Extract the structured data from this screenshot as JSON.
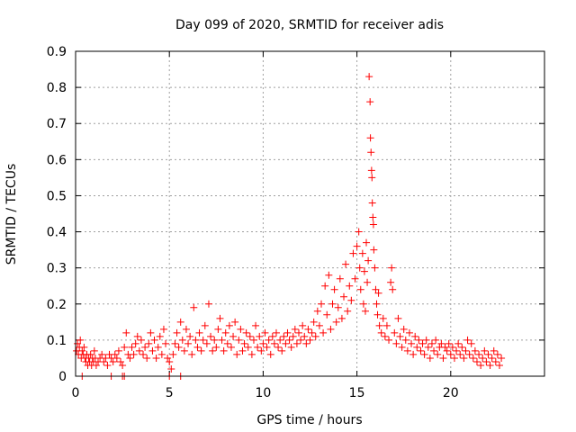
{
  "chart_data": {
    "type": "scatter",
    "title": "Day 099 of 2020, SRMTID for receiver adis",
    "xlabel": "GPS time / hours",
    "ylabel": "SRMTID / TECUs",
    "xlim": [
      0,
      25
    ],
    "ylim": [
      0,
      0.9
    ],
    "xticks": [
      0,
      5,
      10,
      15,
      20
    ],
    "yticks": [
      0,
      0.1,
      0.2,
      0.3,
      0.4,
      0.5,
      0.6,
      0.7,
      0.8,
      0.9
    ],
    "xtick_labels": [
      "0",
      "5",
      "10",
      "15",
      "20"
    ],
    "ytick_labels": [
      "0",
      "0.1",
      "0.2",
      "0.3",
      "0.4",
      "0.5",
      "0.6",
      "0.7",
      "0.8",
      "0.9"
    ],
    "grid": true,
    "marker": "plus",
    "color": "#ff0000",
    "series": [
      {
        "name": "SRMTID",
        "points": [
          [
            0.05,
            0.07
          ],
          [
            0.1,
            0.09
          ],
          [
            0.15,
            0.06
          ],
          [
            0.2,
            0.08
          ],
          [
            0.25,
            0.1
          ],
          [
            0.3,
            0.05
          ],
          [
            0.35,
            0.07
          ],
          [
            0.4,
            0.06
          ],
          [
            0.45,
            0.08
          ],
          [
            0.5,
            0.05
          ],
          [
            0.55,
            0.04
          ],
          [
            0.6,
            0.06
          ],
          [
            0.65,
            0.03
          ],
          [
            0.7,
            0.05
          ],
          [
            0.75,
            0.04
          ],
          [
            0.8,
            0.06
          ],
          [
            0.85,
            0.03
          ],
          [
            0.9,
            0.05
          ],
          [
            0.95,
            0.04
          ],
          [
            1.0,
            0.07
          ],
          [
            1.05,
            0.05
          ],
          [
            1.1,
            0.03
          ],
          [
            1.2,
            0.04
          ],
          [
            1.3,
            0.05
          ],
          [
            1.4,
            0.06
          ],
          [
            1.5,
            0.04
          ],
          [
            1.6,
            0.05
          ],
          [
            1.7,
            0.03
          ],
          [
            1.8,
            0.06
          ],
          [
            1.9,
            0.05
          ],
          [
            2.0,
            0.04
          ],
          [
            2.1,
            0.06
          ],
          [
            2.2,
            0.05
          ],
          [
            2.3,
            0.07
          ],
          [
            2.4,
            0.04
          ],
          [
            2.5,
            0.03
          ],
          [
            2.6,
            0.08
          ],
          [
            2.7,
            0.12
          ],
          [
            2.8,
            0.06
          ],
          [
            2.9,
            0.05
          ],
          [
            3.0,
            0.08
          ],
          [
            3.1,
            0.06
          ],
          [
            3.2,
            0.09
          ],
          [
            3.3,
            0.11
          ],
          [
            3.4,
            0.07
          ],
          [
            3.5,
            0.1
          ],
          [
            3.6,
            0.06
          ],
          [
            3.7,
            0.08
          ],
          [
            3.8,
            0.05
          ],
          [
            3.9,
            0.09
          ],
          [
            4.0,
            0.12
          ],
          [
            4.1,
            0.07
          ],
          [
            4.2,
            0.1
          ],
          [
            4.3,
            0.05
          ],
          [
            4.4,
            0.08
          ],
          [
            4.5,
            0.11
          ],
          [
            4.6,
            0.06
          ],
          [
            4.7,
            0.13
          ],
          [
            4.8,
            0.09
          ],
          [
            4.9,
            0.05
          ],
          [
            5.0,
            0.04
          ],
          [
            5.1,
            0.02
          ],
          [
            5.2,
            0.06
          ],
          [
            5.3,
            0.09
          ],
          [
            5.4,
            0.12
          ],
          [
            5.5,
            0.08
          ],
          [
            5.6,
            0.15
          ],
          [
            5.7,
            0.1
          ],
          [
            5.8,
            0.07
          ],
          [
            5.9,
            0.13
          ],
          [
            6.0,
            0.09
          ],
          [
            6.1,
            0.11
          ],
          [
            6.2,
            0.06
          ],
          [
            6.3,
            0.19
          ],
          [
            6.4,
            0.1
          ],
          [
            6.5,
            0.08
          ],
          [
            6.6,
            0.12
          ],
          [
            6.7,
            0.07
          ],
          [
            6.8,
            0.1
          ],
          [
            6.9,
            0.14
          ],
          [
            7.0,
            0.09
          ],
          [
            7.1,
            0.2
          ],
          [
            7.2,
            0.11
          ],
          [
            7.3,
            0.07
          ],
          [
            7.4,
            0.1
          ],
          [
            7.5,
            0.08
          ],
          [
            7.6,
            0.13
          ],
          [
            7.7,
            0.16
          ],
          [
            7.8,
            0.1
          ],
          [
            7.9,
            0.07
          ],
          [
            8.0,
            0.12
          ],
          [
            8.1,
            0.09
          ],
          [
            8.2,
            0.14
          ],
          [
            8.3,
            0.08
          ],
          [
            8.4,
            0.11
          ],
          [
            8.5,
            0.15
          ],
          [
            8.6,
            0.06
          ],
          [
            8.7,
            0.1
          ],
          [
            8.8,
            0.13
          ],
          [
            8.9,
            0.07
          ],
          [
            9.0,
            0.09
          ],
          [
            9.1,
            0.12
          ],
          [
            9.2,
            0.08
          ],
          [
            9.3,
            0.11
          ],
          [
            9.4,
            0.06
          ],
          [
            9.5,
            0.1
          ],
          [
            9.6,
            0.14
          ],
          [
            9.7,
            0.08
          ],
          [
            9.8,
            0.11
          ],
          [
            9.9,
            0.07
          ],
          [
            10.0,
            0.09
          ],
          [
            10.1,
            0.12
          ],
          [
            10.2,
            0.08
          ],
          [
            10.3,
            0.1
          ],
          [
            10.4,
            0.06
          ],
          [
            10.5,
            0.11
          ],
          [
            10.6,
            0.09
          ],
          [
            10.7,
            0.12
          ],
          [
            10.8,
            0.08
          ],
          [
            10.9,
            0.1
          ],
          [
            11.0,
            0.07
          ],
          [
            11.1,
            0.11
          ],
          [
            11.2,
            0.09
          ],
          [
            11.3,
            0.12
          ],
          [
            11.4,
            0.1
          ],
          [
            11.5,
            0.08
          ],
          [
            11.6,
            0.11
          ],
          [
            11.7,
            0.13
          ],
          [
            11.8,
            0.09
          ],
          [
            11.9,
            0.12
          ],
          [
            12.0,
            0.1
          ],
          [
            12.1,
            0.14
          ],
          [
            12.2,
            0.11
          ],
          [
            12.3,
            0.09
          ],
          [
            12.4,
            0.13
          ],
          [
            12.5,
            0.1
          ],
          [
            12.6,
            0.12
          ],
          [
            12.7,
            0.15
          ],
          [
            12.8,
            0.11
          ],
          [
            12.9,
            0.18
          ],
          [
            13.0,
            0.14
          ],
          [
            13.1,
            0.2
          ],
          [
            13.2,
            0.12
          ],
          [
            13.3,
            0.25
          ],
          [
            13.4,
            0.17
          ],
          [
            13.5,
            0.28
          ],
          [
            13.6,
            0.13
          ],
          [
            13.7,
            0.2
          ],
          [
            13.8,
            0.24
          ],
          [
            13.9,
            0.15
          ],
          [
            14.0,
            0.19
          ],
          [
            14.1,
            0.27
          ],
          [
            14.2,
            0.16
          ],
          [
            14.3,
            0.22
          ],
          [
            14.4,
            0.31
          ],
          [
            14.5,
            0.18
          ],
          [
            14.6,
            0.25
          ],
          [
            14.7,
            0.21
          ],
          [
            14.8,
            0.34
          ],
          [
            14.9,
            0.27
          ],
          [
            15.0,
            0.36
          ],
          [
            15.1,
            0.4
          ],
          [
            15.15,
            0.3
          ],
          [
            15.2,
            0.24
          ],
          [
            15.3,
            0.34
          ],
          [
            15.35,
            0.2
          ],
          [
            15.4,
            0.29
          ],
          [
            15.45,
            0.18
          ],
          [
            15.5,
            0.37
          ],
          [
            15.55,
            0.26
          ],
          [
            15.6,
            0.32
          ],
          [
            15.65,
            0.83
          ],
          [
            15.7,
            0.76
          ],
          [
            15.72,
            0.66
          ],
          [
            15.75,
            0.62
          ],
          [
            15.78,
            0.57
          ],
          [
            15.8,
            0.55
          ],
          [
            15.82,
            0.48
          ],
          [
            15.85,
            0.44
          ],
          [
            15.88,
            0.42
          ],
          [
            15.9,
            0.35
          ],
          [
            15.95,
            0.3
          ],
          [
            16.0,
            0.24
          ],
          [
            16.05,
            0.2
          ],
          [
            16.1,
            0.17
          ],
          [
            16.15,
            0.23
          ],
          [
            16.2,
            0.14
          ],
          [
            16.3,
            0.12
          ],
          [
            16.4,
            0.16
          ],
          [
            16.5,
            0.11
          ],
          [
            16.6,
            0.14
          ],
          [
            16.7,
            0.1
          ],
          [
            16.8,
            0.26
          ],
          [
            16.85,
            0.3
          ],
          [
            16.9,
            0.24
          ],
          [
            17.0,
            0.12
          ],
          [
            17.1,
            0.09
          ],
          [
            17.2,
            0.16
          ],
          [
            17.3,
            0.11
          ],
          [
            17.4,
            0.08
          ],
          [
            17.5,
            0.13
          ],
          [
            17.6,
            0.1
          ],
          [
            17.7,
            0.07
          ],
          [
            17.8,
            0.12
          ],
          [
            17.9,
            0.09
          ],
          [
            18.0,
            0.06
          ],
          [
            18.1,
            0.11
          ],
          [
            18.2,
            0.08
          ],
          [
            18.3,
            0.1
          ],
          [
            18.4,
            0.07
          ],
          [
            18.5,
            0.09
          ],
          [
            18.6,
            0.06
          ],
          [
            18.7,
            0.1
          ],
          [
            18.8,
            0.08
          ],
          [
            18.9,
            0.05
          ],
          [
            19.0,
            0.09
          ],
          [
            19.1,
            0.07
          ],
          [
            19.2,
            0.1
          ],
          [
            19.3,
            0.06
          ],
          [
            19.4,
            0.08
          ],
          [
            19.5,
            0.09
          ],
          [
            19.6,
            0.05
          ],
          [
            19.7,
            0.08
          ],
          [
            19.8,
            0.07
          ],
          [
            19.9,
            0.09
          ],
          [
            20.0,
            0.06
          ],
          [
            20.1,
            0.08
          ],
          [
            20.2,
            0.05
          ],
          [
            20.3,
            0.07
          ],
          [
            20.4,
            0.09
          ],
          [
            20.5,
            0.06
          ],
          [
            20.6,
            0.08
          ],
          [
            20.7,
            0.05
          ],
          [
            20.8,
            0.07
          ],
          [
            20.9,
            0.1
          ],
          [
            21.0,
            0.06
          ],
          [
            21.1,
            0.09
          ],
          [
            21.2,
            0.05
          ],
          [
            21.3,
            0.07
          ],
          [
            21.4,
            0.04
          ],
          [
            21.5,
            0.06
          ],
          [
            21.6,
            0.03
          ],
          [
            21.7,
            0.05
          ],
          [
            21.8,
            0.07
          ],
          [
            21.9,
            0.04
          ],
          [
            22.0,
            0.06
          ],
          [
            22.1,
            0.03
          ],
          [
            22.2,
            0.05
          ],
          [
            22.3,
            0.07
          ],
          [
            22.4,
            0.04
          ],
          [
            22.5,
            0.06
          ],
          [
            22.6,
            0.03
          ],
          [
            22.7,
            0.05
          ]
        ]
      }
    ],
    "outliers_at_zero": [
      0.35,
      1.9,
      2.5,
      2.6,
      5.0,
      5.6
    ]
  }
}
